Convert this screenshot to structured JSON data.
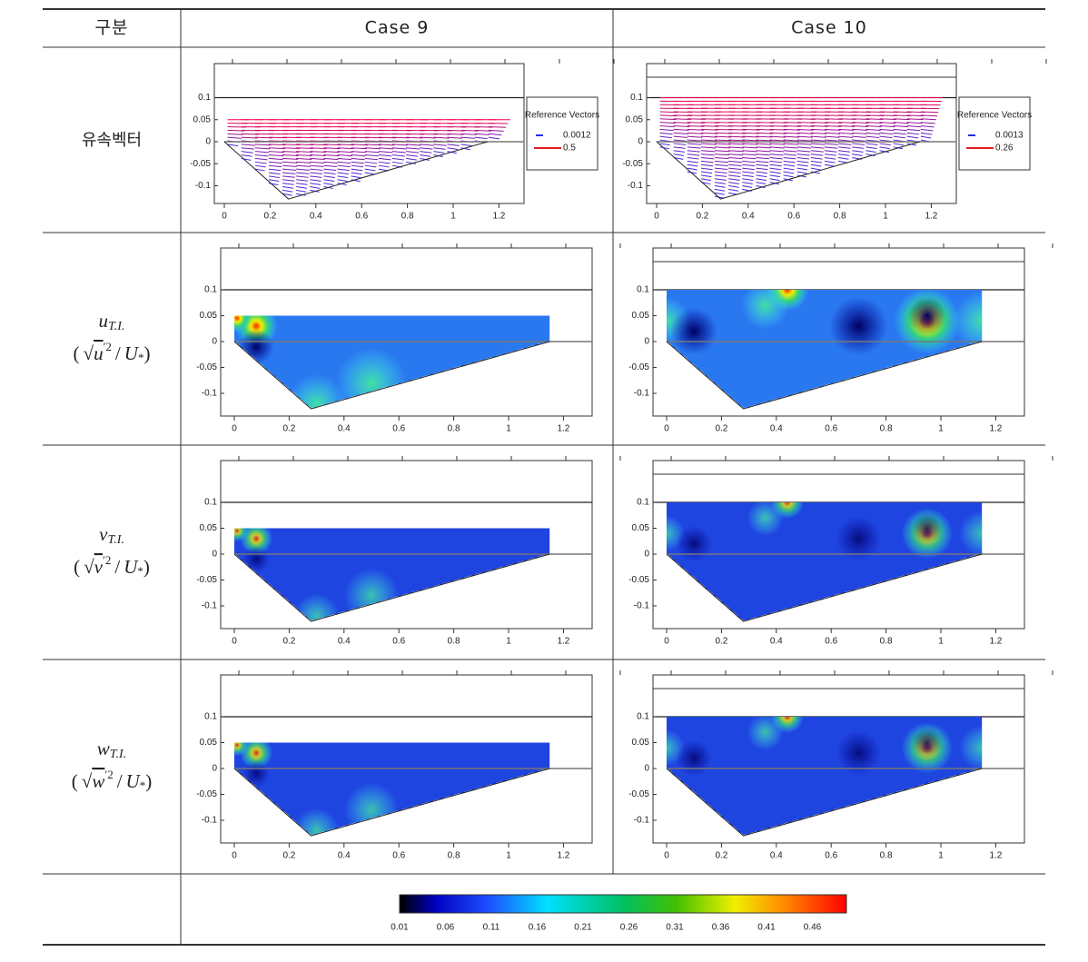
{
  "header": {
    "col0": "구분",
    "col1": "Case 9",
    "col2": "Case 10"
  },
  "rows": [
    {
      "label": "유속벡터"
    },
    {
      "label_main": "u",
      "label_sub": "T.I.",
      "formula_var": "u",
      "formula_sup": "′2"
    },
    {
      "label_main": "v",
      "label_sub": "T.I.",
      "formula_var": "v",
      "formula_sup": "′2"
    },
    {
      "label_main": "w",
      "label_sub": "T.I.",
      "formula_var": "w",
      "formula_sup": "′2"
    }
  ],
  "formula": {
    "open": "(",
    "root": "√",
    "slash": "/",
    "den": "U",
    "den_sub": "*",
    "close": ")"
  },
  "axis": {
    "x_ticks": [
      "0",
      "0.2",
      "0.4",
      "0.6",
      "0.8",
      "1",
      "1.2"
    ],
    "y_ticks": [
      "0.1",
      "0.05",
      "0",
      "-0.05",
      "-0.1"
    ]
  },
  "reference_vectors": {
    "title": "Reference Vectors",
    "cases": [
      [
        "0.0012",
        "0.5"
      ],
      [
        "0.0013",
        "0.26"
      ]
    ]
  },
  "colorbar": {
    "labels": [
      "0.01",
      "0.06",
      "0.11",
      "0.16",
      "0.21",
      "0.26",
      "0.31",
      "0.36",
      "0.41",
      "0.46"
    ]
  }
}
